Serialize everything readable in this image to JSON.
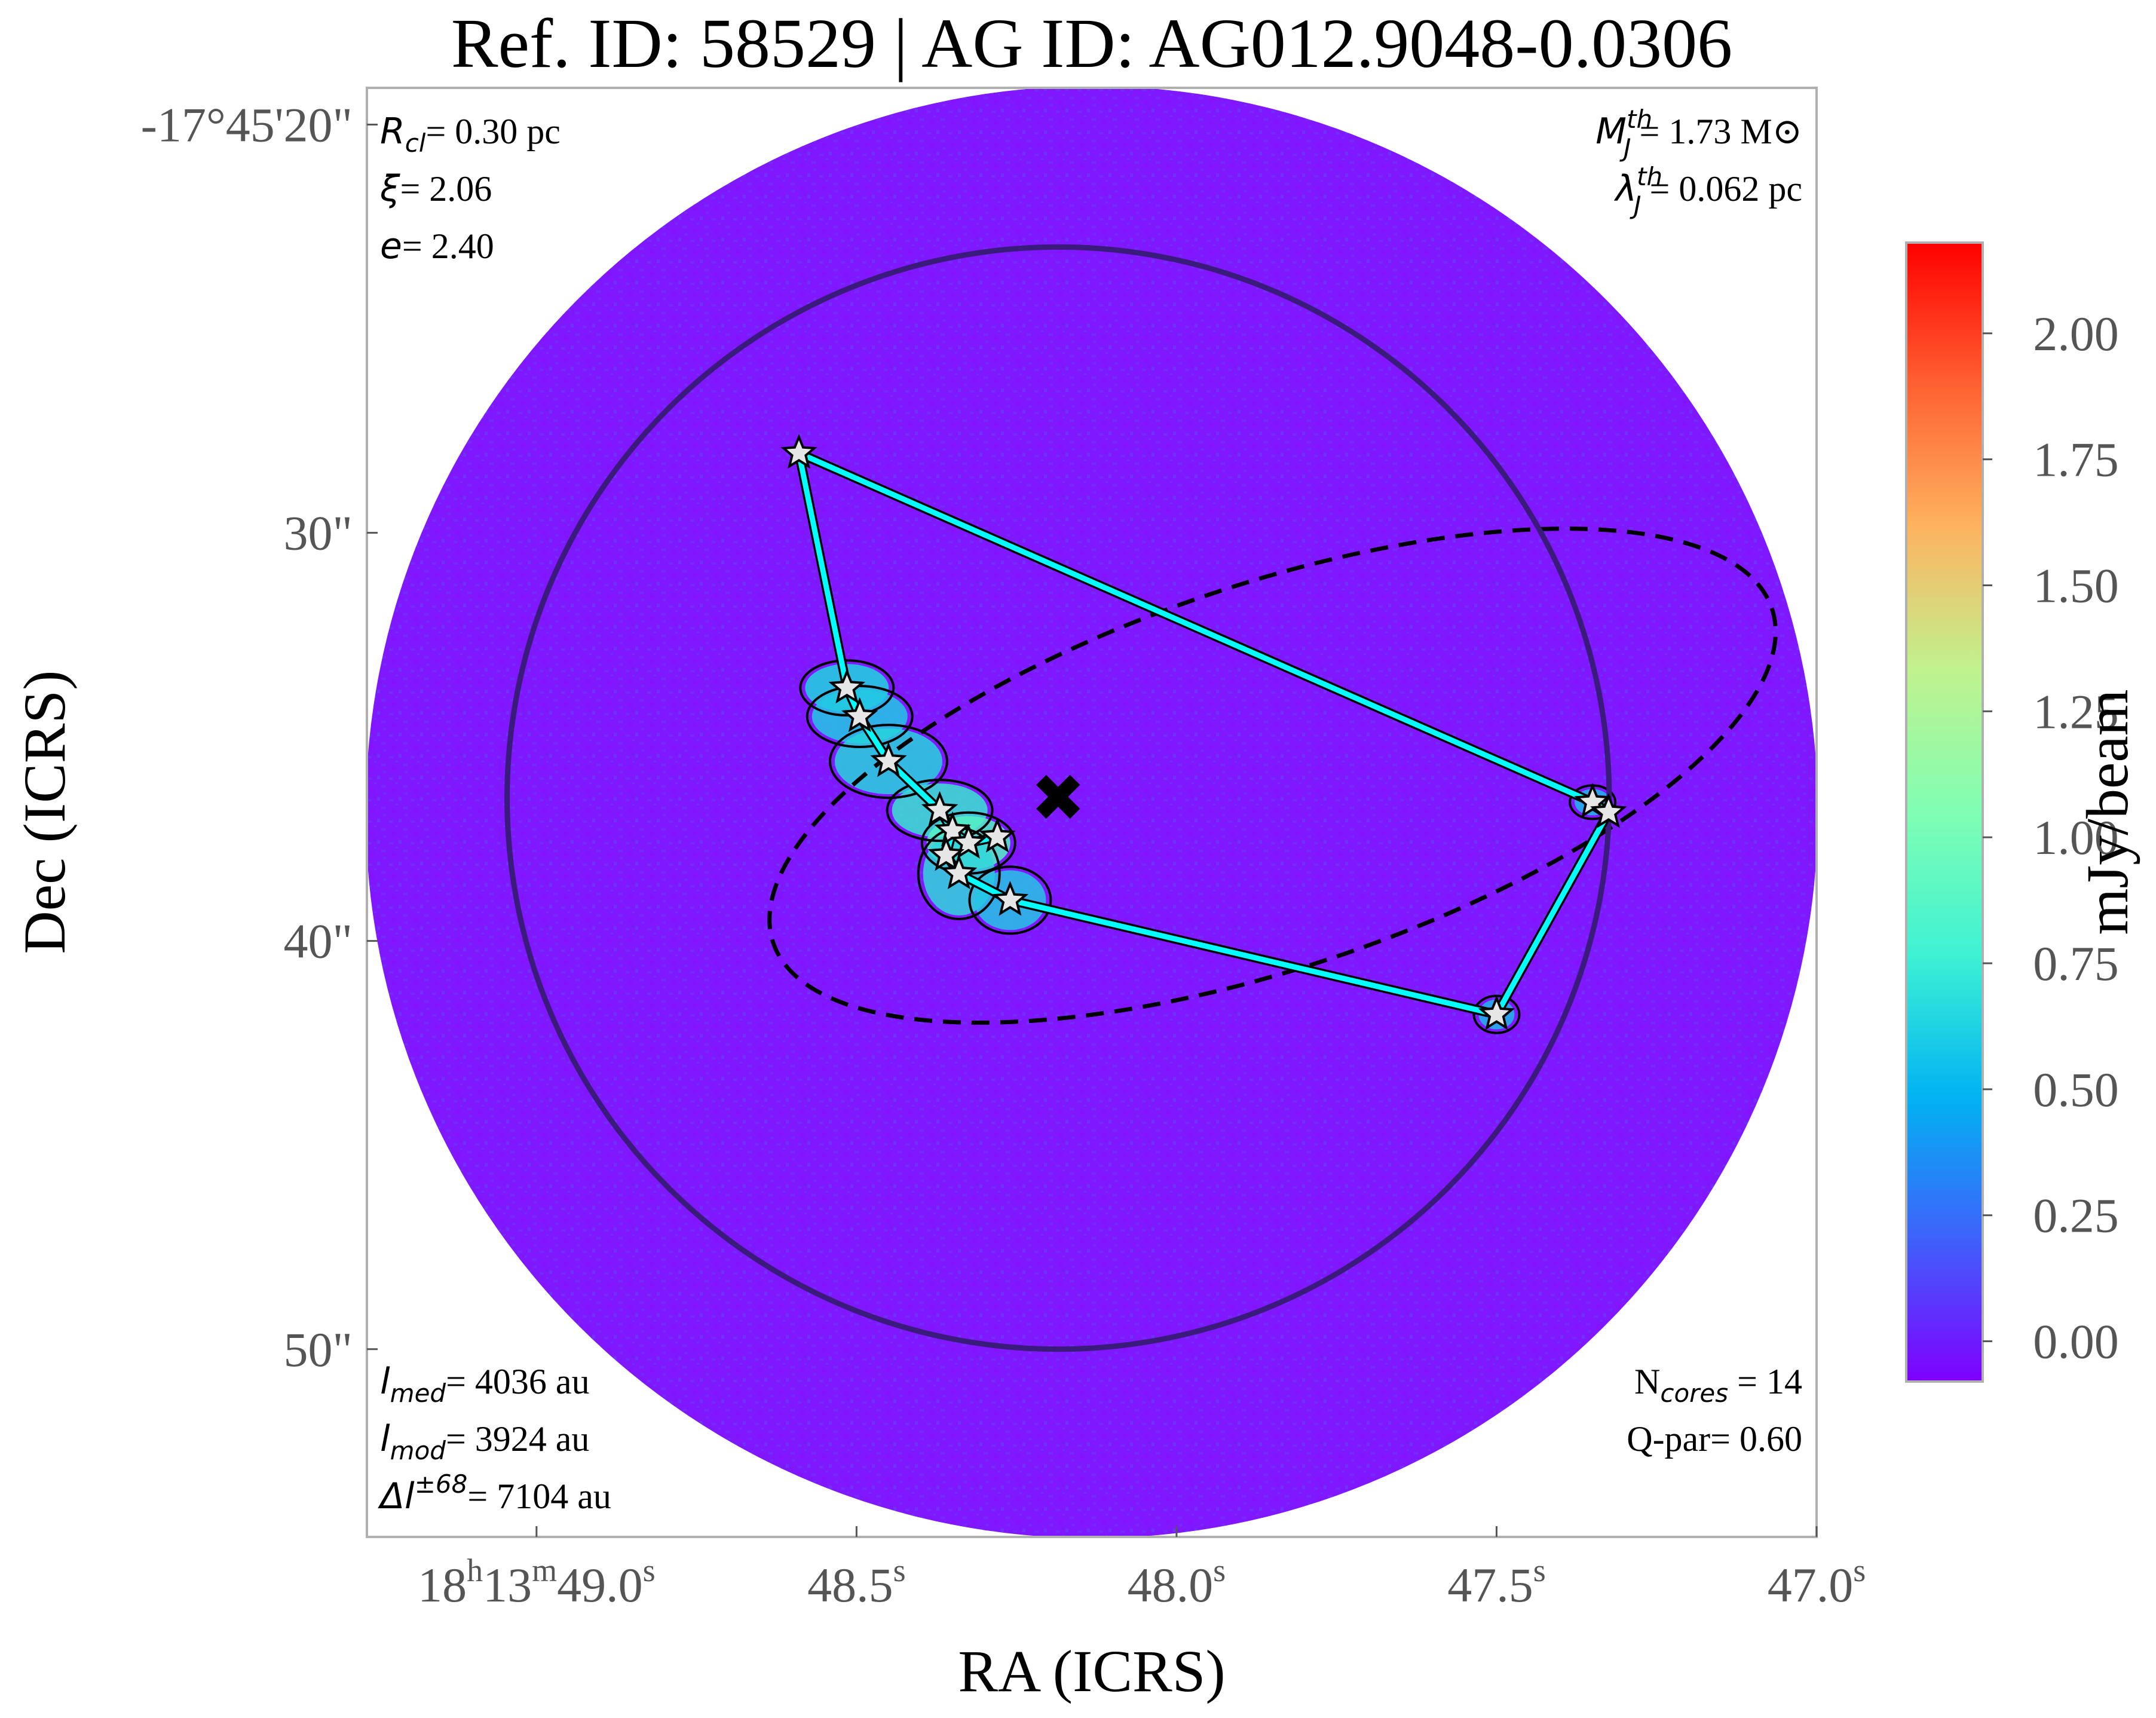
{
  "title": "Ref. ID: 58529 | AG ID: AG012.9048-0.0306",
  "chart_data": {
    "type": "heatmap",
    "title": "Ref. ID: 58529 | AG ID: AG012.9048-0.0306",
    "xlabel": "RA (ICRS)",
    "ylabel": "Dec (ICRS)",
    "x_ticks": [
      {
        "h": "18",
        "m": "13",
        "s": "49.0",
        "value": 49.0
      },
      {
        "h": "",
        "m": "",
        "s": "48.5",
        "value": 48.5
      },
      {
        "h": "",
        "m": "",
        "s": "48.0",
        "value": 48.0
      },
      {
        "h": "",
        "m": "",
        "s": "47.5",
        "value": 47.5
      },
      {
        "h": "",
        "m": "",
        "s": "47.0",
        "value": 47.0
      }
    ],
    "x_tick_sup": {
      "h": "h",
      "m": "m",
      "s": "s"
    },
    "x_range_sec": [
      49.265,
      47.0
    ],
    "y_ticks": [
      {
        "label": "-17°45'20\"",
        "value": 20
      },
      {
        "label": "30\"",
        "value": 30
      },
      {
        "label": "40\"",
        "value": 40
      },
      {
        "label": "50\"",
        "value": 50
      }
    ],
    "y_range_arcsec": [
      19.1,
      54.6
    ],
    "colorbar": {
      "label": "mJy/beam",
      "colormap": "rainbow",
      "min": -0.08,
      "max": 2.18,
      "ticks": [
        "0.00",
        "0.25",
        "0.50",
        "0.75",
        "1.00",
        "1.25",
        "1.50",
        "1.75",
        "2.00"
      ],
      "tick_values": [
        0.0,
        0.25,
        0.5,
        0.75,
        1.0,
        1.25,
        1.5,
        1.75,
        2.0
      ]
    },
    "background_color": "#7f17ff",
    "stats_top_left": [
      {
        "sym": "R",
        "sub": "cl",
        "sup": "",
        "value": "= 0.30 pc"
      },
      {
        "sym": "ξ",
        "sub": "",
        "sup": "",
        "value": "= 2.06"
      },
      {
        "sym": "e",
        "sub": "",
        "sup": "",
        "value": "= 2.40"
      }
    ],
    "stats_top_right": [
      {
        "sym": "M",
        "sub": "J",
        "sup": "th",
        "value": "= 1.73 M⊙"
      },
      {
        "sym": "λ",
        "sub": "J",
        "sup": "th",
        "value": "= 0.062 pc"
      }
    ],
    "stats_bottom_left": [
      {
        "sym": "l",
        "sub": "med",
        "sup": "",
        "value": "= 4036 au"
      },
      {
        "sym": "l",
        "sub": "mod",
        "sup": "",
        "value": "= 3924 au"
      },
      {
        "sym": "Δl",
        "sub": "",
        "sup": "±68",
        "value": "= 7104 au"
      }
    ],
    "stats_bottom_right": [
      {
        "pre": "N",
        "sub": "cores",
        "value": " = 14"
      },
      {
        "pre": "Q-par",
        "sub": "",
        "value": "= 0.60"
      }
    ],
    "cores": [
      {
        "ra": 48.59,
        "dec": 28.05
      },
      {
        "ra": 48.515,
        "dec": 33.8
      },
      {
        "ra": 48.495,
        "dec": 34.5
      },
      {
        "ra": 48.45,
        "dec": 35.6
      },
      {
        "ra": 48.37,
        "dec": 36.8
      },
      {
        "ra": 48.35,
        "dec": 37.3
      },
      {
        "ra": 48.325,
        "dec": 37.6
      },
      {
        "ra": 48.36,
        "dec": 37.9
      },
      {
        "ra": 48.28,
        "dec": 37.45
      },
      {
        "ra": 48.34,
        "dec": 38.35
      },
      {
        "ra": 48.26,
        "dec": 39.0
      },
      {
        "ra": 47.35,
        "dec": 36.6
      },
      {
        "ra": 47.325,
        "dec": 36.85
      },
      {
        "ra": 47.5,
        "dec": 41.8
      }
    ],
    "mst_edges": [
      [
        0,
        1
      ],
      [
        1,
        2
      ],
      [
        2,
        3
      ],
      [
        3,
        4
      ],
      [
        4,
        5
      ],
      [
        5,
        6
      ],
      [
        6,
        8
      ],
      [
        5,
        7
      ],
      [
        7,
        9
      ],
      [
        9,
        10
      ],
      [
        10,
        13
      ],
      [
        13,
        12
      ],
      [
        12,
        11
      ],
      [
        11,
        0
      ]
    ],
    "mst_thick_edge": [
      13,
      11
    ],
    "center_marker": {
      "ra": 48.185,
      "dec": 36.5
    },
    "cluster_circle": {
      "ra": 48.185,
      "dec": 36.5,
      "radius_arcsec": 13.5
    },
    "fit_ellipse": {
      "ra": 47.85,
      "dec": 35.95,
      "semi_major_arcsec": 12.9,
      "semi_minor_arcsec": 4.7,
      "angle_deg": -18.5
    }
  }
}
